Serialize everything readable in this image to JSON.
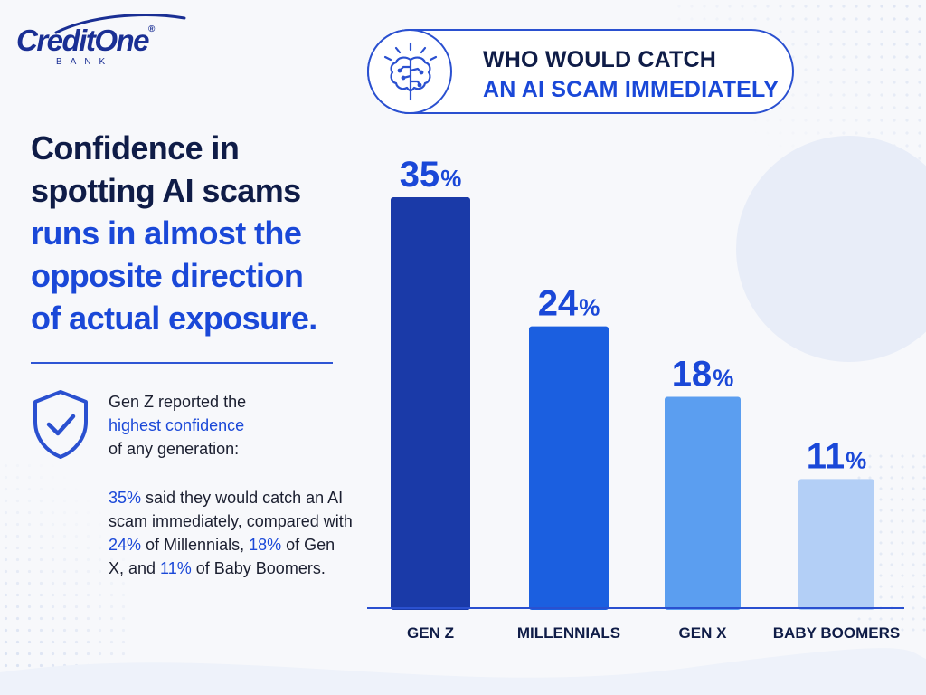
{
  "brand": {
    "name": "CreditOne",
    "registered": "®",
    "subtitle": "BANK"
  },
  "headline": {
    "line1": "Confidence in",
    "line2": "spotting AI scams",
    "line3": "runs in almost the",
    "line4": "opposite direction",
    "line5": "of actual exposure."
  },
  "callout": {
    "intro_1": "Gen Z reported the",
    "intro_highlight": "highest confidence",
    "intro_2": "of any generation:",
    "stat_highlight": "35%",
    "stat_1": " said they would catch an AI scam immediately, compared with ",
    "stat_millennials": "24%",
    "stat_2": " of Millennials, ",
    "stat_genx": "18%",
    "stat_3": " of Gen X, and ",
    "stat_boomers": "11%",
    "stat_4": " of Baby Boomers."
  },
  "icons": {
    "brain": "brain-circuit-icon",
    "shield": "shield-check-icon"
  },
  "colors": {
    "dark_text": "#0f1c47",
    "accent_blue": "#1a48d8",
    "bars": [
      "#1a3aa8",
      "#1b5fe0",
      "#5b9ef0",
      "#b3cff6"
    ]
  },
  "chart_data": {
    "type": "bar",
    "title_line1": "WHO WOULD CATCH",
    "title_line2": "AN AI SCAM IMMEDIATELY",
    "categories": [
      "GEN Z",
      "MILLENNIALS",
      "GEN X",
      "BABY BOOMERS"
    ],
    "values": [
      35,
      24,
      18,
      11
    ],
    "value_suffix": "%",
    "ylim": [
      0,
      40
    ],
    "grid": false,
    "legend": "none"
  }
}
